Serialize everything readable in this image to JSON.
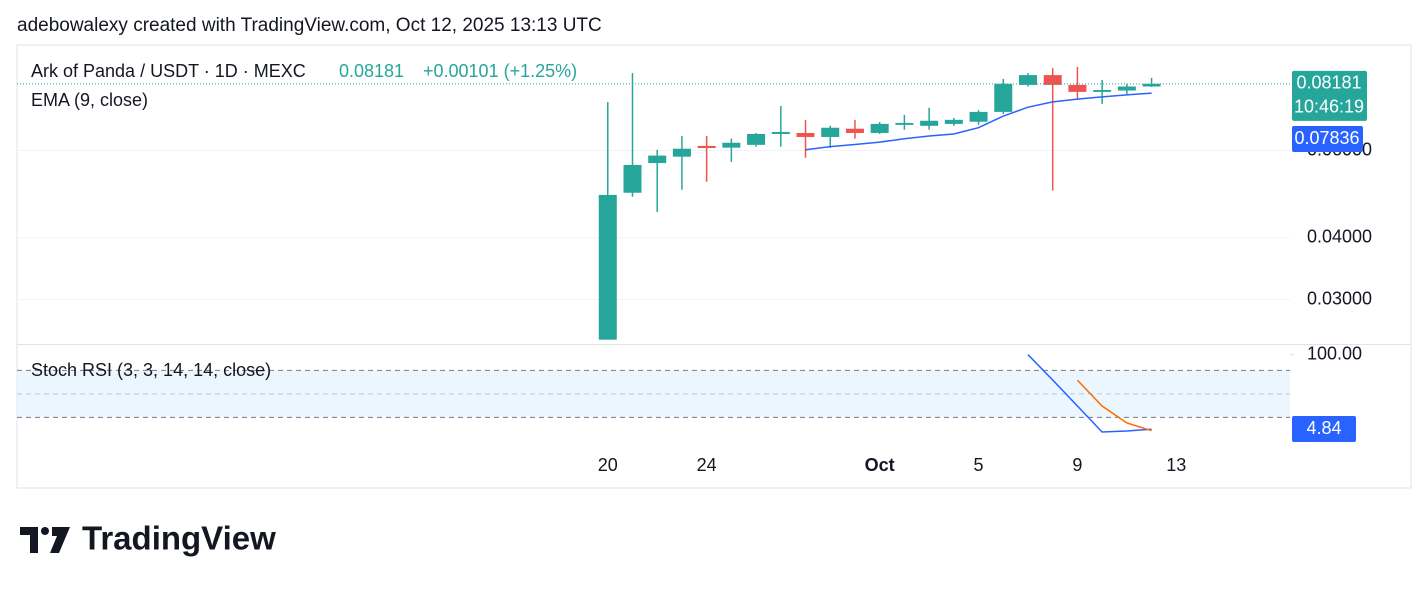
{
  "header": {
    "text": "adebowalexy created with TradingView.com, Oct 12, 2025 13:13 UTC"
  },
  "footer": {
    "brand": "TradingView"
  },
  "chart_data": [
    {
      "type": "candlestick",
      "title": "Ark of Panda / USDT · 1D · MEXC",
      "change": "+0.00101 (+1.25%)",
      "countdown": "10:46:19",
      "log_scale": true,
      "grid": true,
      "ylim": [
        0.0244,
        0.098
      ],
      "yticks": [
        {
          "value": 0.03,
          "label": "0.03000"
        },
        {
          "value": 0.04,
          "label": "0.04000"
        },
        {
          "value": 0.06,
          "label": "0.06000"
        }
      ],
      "xlim": [
        -23.9,
        27.6
      ],
      "xticks": [
        {
          "value": 0,
          "label": "20"
        },
        {
          "value": 4,
          "label": "24"
        },
        {
          "value": 11,
          "label": "Oct"
        },
        {
          "value": 15,
          "label": "5"
        },
        {
          "value": 19,
          "label": "9"
        },
        {
          "value": 23,
          "label": "13"
        }
      ],
      "candles": {
        "up_color": "#26a69a",
        "down_color": "#ef5350",
        "open": [
          0.0249,
          0.0493,
          0.0566,
          0.0583,
          0.0613,
          0.0608,
          0.0616,
          0.0648,
          0.0651,
          0.0639,
          0.0664,
          0.0651,
          0.0676,
          0.0673,
          0.0679,
          0.0686,
          0.0718,
          0.0814,
          0.0852,
          0.0814,
          0.0788,
          0.0793,
          0.0808
        ],
        "high": [
          0.0752,
          0.086,
          0.0602,
          0.0642,
          0.0642,
          0.0634,
          0.0651,
          0.0738,
          0.0692,
          0.0673,
          0.0692,
          0.0685,
          0.0708,
          0.0732,
          0.0698,
          0.0724,
          0.0837,
          0.086,
          0.088,
          0.0885,
          0.0833,
          0.0818,
          0.0841
        ],
        "low": [
          0.0249,
          0.0484,
          0.0451,
          0.05,
          0.0519,
          0.0569,
          0.0611,
          0.0611,
          0.058,
          0.0607,
          0.0634,
          0.0648,
          0.0661,
          0.0661,
          0.0673,
          0.0676,
          0.0711,
          0.0808,
          0.0498,
          0.0759,
          0.0745,
          0.078,
          0.0806
        ],
        "close": [
          0.0488,
          0.0561,
          0.0586,
          0.0605,
          0.0607,
          0.0622,
          0.0648,
          0.0654,
          0.0639,
          0.0667,
          0.0651,
          0.0679,
          0.0682,
          0.0689,
          0.0692,
          0.0718,
          0.0818,
          0.0852,
          0.0814,
          0.0788,
          0.0795,
          0.0808,
          0.08181
        ]
      },
      "series": [
        {
          "name": "EMA (9, close)",
          "color": "#2962ff",
          "values": [
            null,
            null,
            null,
            null,
            null,
            null,
            null,
            null,
            0.0602,
            0.0611,
            0.0617,
            0.0624,
            0.0634,
            0.0642,
            0.0648,
            0.0667,
            0.0704,
            0.0734,
            0.0752,
            0.0762,
            0.077,
            0.0777,
            0.07836
          ]
        }
      ]
    },
    {
      "type": "line",
      "title": "Stoch RSI (3, 3, 14, 14, close)",
      "ylim": [
        -15.3,
        112.4
      ],
      "yticks": [
        {
          "value": 100,
          "label": "100.00"
        }
      ],
      "bands": [
        80,
        50,
        20
      ],
      "band_color": "#e3f2fd",
      "series": [
        {
          "color": "#2962ff",
          "values": [
            null,
            null,
            null,
            null,
            null,
            null,
            null,
            null,
            null,
            null,
            null,
            null,
            null,
            null,
            null,
            null,
            null,
            100,
            67.7,
            34.5,
            1.3,
            2.6,
            4.84
          ]
        },
        {
          "color": "#ff6d00",
          "values": [
            null,
            null,
            null,
            null,
            null,
            null,
            null,
            null,
            null,
            null,
            null,
            null,
            null,
            null,
            null,
            null,
            null,
            null,
            null,
            67.4,
            34.5,
            12.8,
            2.9
          ]
        }
      ]
    }
  ]
}
